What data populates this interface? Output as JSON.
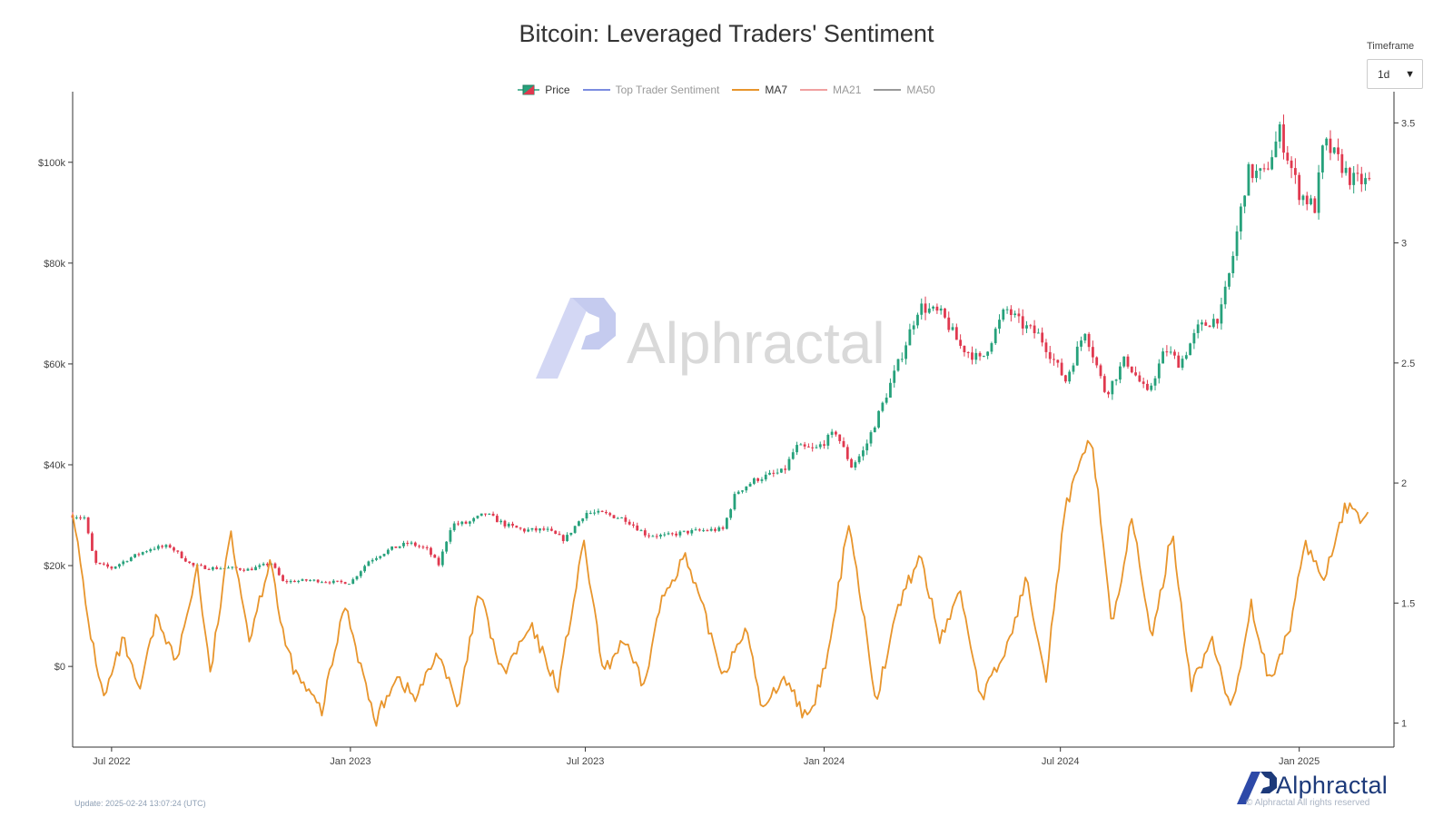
{
  "title": "Bitcoin: Leveraged Traders' Sentiment",
  "legend": {
    "items": [
      {
        "label": "Price",
        "type": "candle",
        "active": true
      },
      {
        "label": "Top Trader Sentiment",
        "type": "line",
        "color": "#7b8ce0",
        "active": false
      },
      {
        "label": "MA7",
        "type": "line",
        "color": "#e8952c",
        "active": true
      },
      {
        "label": "MA21",
        "type": "line",
        "color": "#f0a0a0",
        "active": false
      },
      {
        "label": "MA50",
        "type": "line",
        "color": "#999999",
        "active": false
      }
    ]
  },
  "timeframe": {
    "label": "Timeframe",
    "value": "1d"
  },
  "watermark": "Alphractal",
  "footer": {
    "update": "Update: 2025-02-24 13:07:24 (UTC)",
    "brand": "Alphractal",
    "copyright": "© Alphractal All rights reserved"
  },
  "colors": {
    "up": "#26a17b",
    "down": "#e0394f",
    "ma7": "#e8952c",
    "axis": "#333333",
    "watermark": "#d6daf5"
  },
  "chart_data": {
    "type": "line",
    "title": "Bitcoin: Leveraged Traders' Sentiment",
    "xlabel": "",
    "x_ticks": [
      "Jul 2022",
      "Jan 2023",
      "Jul 2023",
      "Jan 2024",
      "Jul 2024",
      "Jan 2025"
    ],
    "x_tick_dates": [
      "2022-07-01",
      "2023-01-01",
      "2023-07-01",
      "2024-01-01",
      "2024-07-01",
      "2025-01-01"
    ],
    "x_range": [
      "2022-06-01",
      "2025-03-15"
    ],
    "y_left": {
      "ticks": [
        "$0",
        "$20k",
        "$40k",
        "$60k",
        "$80k",
        "$100k"
      ],
      "tick_values": [
        0,
        20000,
        40000,
        60000,
        80000,
        100000
      ],
      "range": [
        -16000,
        114000
      ]
    },
    "y_right": {
      "ticks": [
        "1",
        "1.5",
        "2",
        "2.5",
        "3",
        "3.5"
      ],
      "tick_values": [
        1,
        1.5,
        2,
        2.5,
        3,
        3.5
      ],
      "range": [
        0.9,
        3.63
      ]
    },
    "grid": false,
    "legend_position": "top-center",
    "series": [
      {
        "name": "Price",
        "axis": "left",
        "style": "candlestick",
        "dates": [
          "2022-06-01",
          "2022-06-10",
          "2022-06-18",
          "2022-07-01",
          "2022-07-15",
          "2022-08-01",
          "2022-08-15",
          "2022-09-01",
          "2022-09-15",
          "2022-10-01",
          "2022-10-15",
          "2022-11-01",
          "2022-11-10",
          "2022-12-01",
          "2022-12-15",
          "2023-01-01",
          "2023-01-15",
          "2023-02-01",
          "2023-02-15",
          "2023-03-01",
          "2023-03-10",
          "2023-03-20",
          "2023-04-01",
          "2023-04-15",
          "2023-05-01",
          "2023-05-15",
          "2023-06-01",
          "2023-06-15",
          "2023-07-01",
          "2023-07-15",
          "2023-08-01",
          "2023-08-17",
          "2023-09-01",
          "2023-09-15",
          "2023-10-01",
          "2023-10-15",
          "2023-10-25",
          "2023-11-10",
          "2023-12-01",
          "2023-12-10",
          "2023-12-25",
          "2024-01-10",
          "2024-01-22",
          "2024-02-01",
          "2024-02-15",
          "2024-03-01",
          "2024-03-14",
          "2024-04-01",
          "2024-04-15",
          "2024-05-01",
          "2024-05-20",
          "2024-06-01",
          "2024-06-15",
          "2024-07-05",
          "2024-07-20",
          "2024-08-05",
          "2024-08-20",
          "2024-09-06",
          "2024-09-20",
          "2024-10-01",
          "2024-10-15",
          "2024-11-01",
          "2024-11-10",
          "2024-11-22",
          "2024-12-05",
          "2024-12-17",
          "2025-01-01",
          "2025-01-13",
          "2025-01-20",
          "2025-02-01",
          "2025-02-10",
          "2025-02-24"
        ],
        "close": [
          30000,
          29500,
          20500,
          19500,
          21500,
          23500,
          23800,
          20000,
          19500,
          19500,
          19200,
          20500,
          16800,
          17100,
          16800,
          16600,
          20900,
          23300,
          24500,
          23200,
          20200,
          28200,
          28400,
          30300,
          28000,
          27000,
          27100,
          25100,
          30500,
          30300,
          29200,
          26100,
          25900,
          26600,
          27000,
          27200,
          34500,
          37200,
          38700,
          43500,
          43000,
          46500,
          39700,
          43000,
          52000,
          62000,
          71500,
          69700,
          63500,
          60600,
          71000,
          67800,
          65600,
          56700,
          66800,
          54000,
          61000,
          54000,
          63000,
          60000,
          67000,
          69500,
          80000,
          98000,
          97500,
          106000,
          94000,
          91000,
          104000,
          100000,
          96500,
          96000
        ]
      },
      {
        "name": "MA7",
        "axis": "right",
        "style": "line",
        "dates": [
          "2022-06-01",
          "2022-06-12",
          "2022-06-25",
          "2022-07-10",
          "2022-07-22",
          "2022-08-05",
          "2022-08-20",
          "2022-09-05",
          "2022-09-15",
          "2022-10-01",
          "2022-10-15",
          "2022-11-01",
          "2022-11-08",
          "2022-11-20",
          "2022-12-10",
          "2022-12-28",
          "2023-01-20",
          "2023-02-05",
          "2023-02-20",
          "2023-03-10",
          "2023-03-25",
          "2023-04-10",
          "2023-04-28",
          "2023-05-20",
          "2023-06-10",
          "2023-06-30",
          "2023-07-15",
          "2023-07-30",
          "2023-08-15",
          "2023-08-28",
          "2023-09-15",
          "2023-10-01",
          "2023-10-15",
          "2023-11-01",
          "2023-11-15",
          "2023-12-01",
          "2023-12-20",
          "2024-01-05",
          "2024-01-20",
          "2024-02-10",
          "2024-02-28",
          "2024-03-15",
          "2024-03-30",
          "2024-04-15",
          "2024-05-01",
          "2024-05-20",
          "2024-06-05",
          "2024-06-20",
          "2024-07-05",
          "2024-07-25",
          "2024-08-10",
          "2024-08-25",
          "2024-09-10",
          "2024-09-25",
          "2024-10-10",
          "2024-10-25",
          "2024-11-10",
          "2024-11-25",
          "2024-12-10",
          "2024-12-25",
          "2025-01-05",
          "2025-01-20",
          "2025-02-05",
          "2025-02-20",
          "2025-02-24"
        ],
        "values": [
          1.9,
          1.45,
          1.1,
          1.35,
          1.12,
          1.45,
          1.25,
          1.65,
          1.2,
          1.8,
          1.35,
          1.7,
          1.4,
          1.2,
          1.05,
          1.5,
          1.0,
          1.2,
          1.1,
          1.3,
          1.05,
          1.55,
          1.2,
          1.4,
          1.15,
          1.75,
          1.2,
          1.35,
          1.15,
          1.5,
          1.7,
          1.45,
          1.2,
          1.4,
          1.05,
          1.2,
          1.0,
          1.3,
          1.85,
          1.1,
          1.5,
          1.7,
          1.35,
          1.55,
          1.1,
          1.3,
          1.6,
          1.2,
          1.9,
          2.2,
          1.4,
          1.85,
          1.35,
          1.8,
          1.15,
          1.35,
          1.05,
          1.5,
          1.15,
          1.4,
          1.75,
          1.6,
          1.9,
          1.85,
          1.88
        ]
      }
    ]
  }
}
